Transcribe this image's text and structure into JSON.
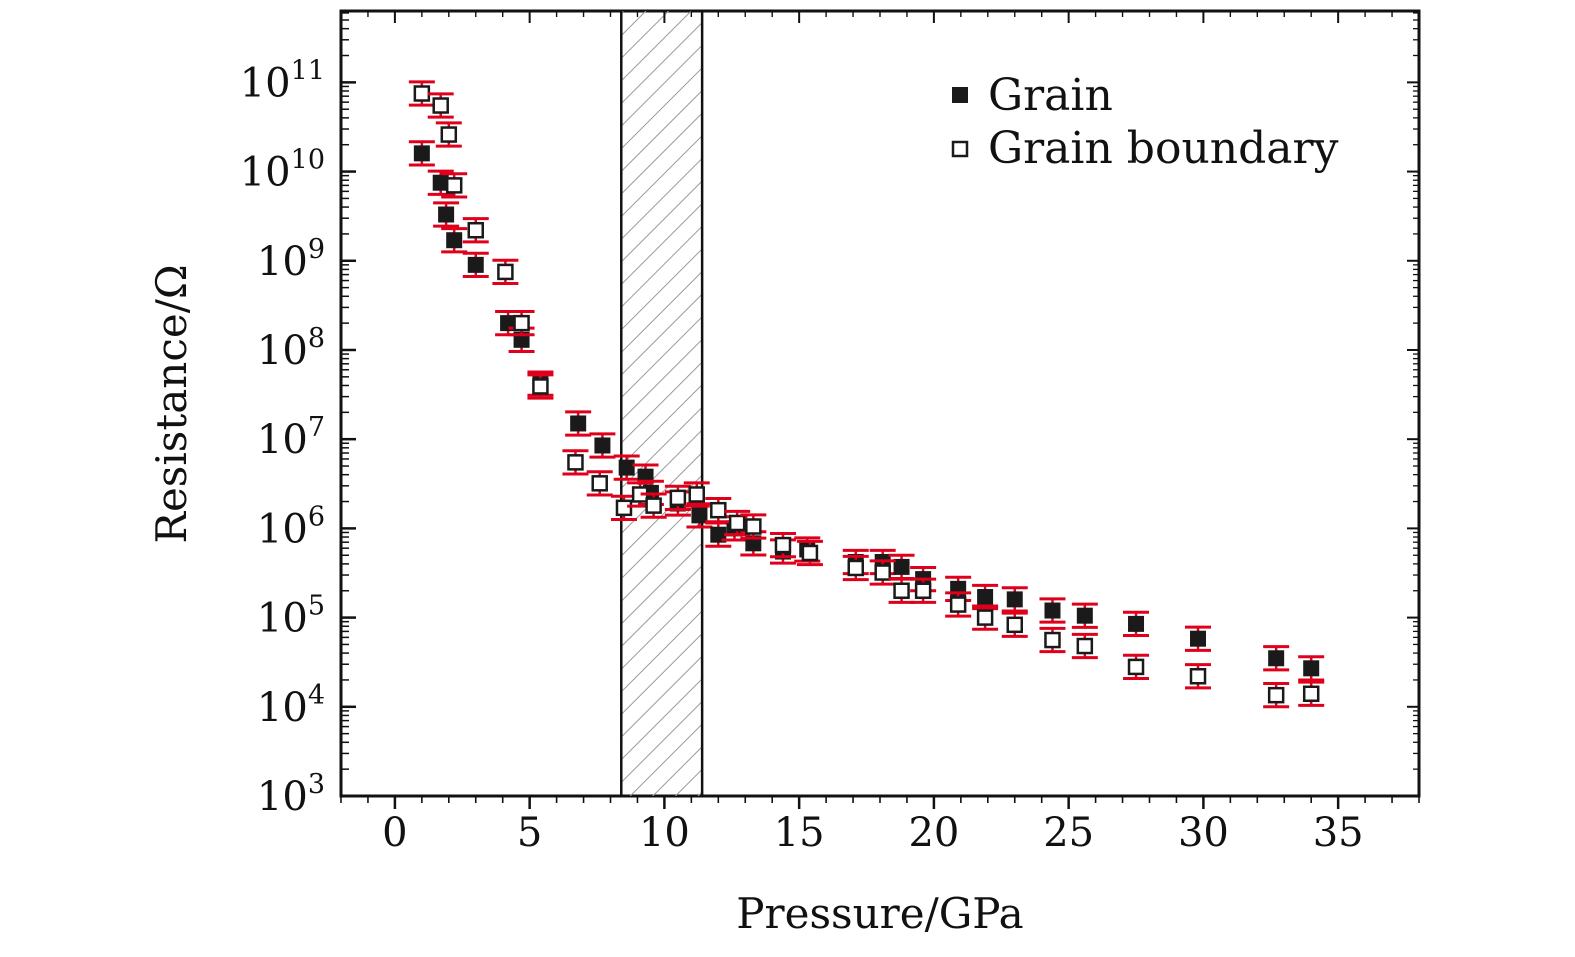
{
  "chart_data": {
    "type": "scatter",
    "xlabel": "Pressure/GPa",
    "ylabel": "Resistance/Ω",
    "xlim": [
      -2,
      38
    ],
    "ylim": [
      3,
      11.8
    ],
    "y_scale": "log10",
    "x_ticks": [
      0,
      5,
      10,
      15,
      20,
      25,
      30,
      35
    ],
    "x_tick_labels": [
      "0",
      "5",
      "10",
      "15",
      "20",
      "25",
      "30",
      "35"
    ],
    "y_ticks": [
      3,
      4,
      5,
      6,
      7,
      8,
      9,
      10,
      11
    ],
    "y_tick_base": "10",
    "y_tick_exponents": [
      "3",
      "4",
      "5",
      "6",
      "7",
      "8",
      "9",
      "10",
      "11"
    ],
    "legend_position": "top-right",
    "shaded_region": {
      "x": [
        8.4,
        11.4
      ]
    },
    "colors": {
      "markers": "#1a1a1a",
      "error_bars": "#e0001b",
      "hatch": "#9a9a9a"
    },
    "series": [
      {
        "name": "Grain",
        "marker": "filled-square",
        "points": [
          {
            "x": 1.0,
            "y": 16000000000.0
          },
          {
            "x": 1.7,
            "y": 7500000000.0
          },
          {
            "x": 1.9,
            "y": 3300000000.0
          },
          {
            "x": 2.2,
            "y": 1700000000.0
          },
          {
            "x": 3.0,
            "y": 900000000.0
          },
          {
            "x": 4.2,
            "y": 200000000.0
          },
          {
            "x": 4.7,
            "y": 130000000.0
          },
          {
            "x": 5.4,
            "y": 42000000.0
          },
          {
            "x": 6.8,
            "y": 15000000.0
          },
          {
            "x": 7.7,
            "y": 8500000.0
          },
          {
            "x": 8.6,
            "y": 4800000.0
          },
          {
            "x": 9.3,
            "y": 3800000.0
          },
          {
            "x": 9.5,
            "y": 2500000.0
          },
          {
            "x": 10.5,
            "y": 1900000.0
          },
          {
            "x": 11.3,
            "y": 1400000.0
          },
          {
            "x": 12.0,
            "y": 850000.0
          },
          {
            "x": 12.6,
            "y": 1000000.0
          },
          {
            "x": 13.3,
            "y": 680000.0
          },
          {
            "x": 14.4,
            "y": 550000.0
          },
          {
            "x": 15.3,
            "y": 580000.0
          },
          {
            "x": 17.1,
            "y": 420000.0
          },
          {
            "x": 18.1,
            "y": 420000.0
          },
          {
            "x": 18.8,
            "y": 370000.0
          },
          {
            "x": 19.6,
            "y": 270000.0
          },
          {
            "x": 20.9,
            "y": 210000.0
          },
          {
            "x": 21.9,
            "y": 170000.0
          },
          {
            "x": 23.0,
            "y": 160000.0
          },
          {
            "x": 24.4,
            "y": 120000.0
          },
          {
            "x": 25.6,
            "y": 105000.0
          },
          {
            "x": 27.5,
            "y": 85000.0
          },
          {
            "x": 29.8,
            "y": 58000.0
          },
          {
            "x": 32.7,
            "y": 35000.0
          },
          {
            "x": 34.0,
            "y": 27000.0
          }
        ]
      },
      {
        "name": "Grain boundary",
        "marker": "open-square",
        "points": [
          {
            "x": 1.0,
            "y": 75000000000.0
          },
          {
            "x": 1.7,
            "y": 55000000000.0
          },
          {
            "x": 2.0,
            "y": 26000000000.0
          },
          {
            "x": 2.2,
            "y": 7000000000.0
          },
          {
            "x": 3.0,
            "y": 2200000000.0
          },
          {
            "x": 4.1,
            "y": 750000000.0
          },
          {
            "x": 4.7,
            "y": 200000000.0
          },
          {
            "x": 5.4,
            "y": 39000000.0
          },
          {
            "x": 6.7,
            "y": 5500000.0
          },
          {
            "x": 7.6,
            "y": 3200000.0
          },
          {
            "x": 8.5,
            "y": 1700000.0
          },
          {
            "x": 9.1,
            "y": 2400000.0
          },
          {
            "x": 9.6,
            "y": 1800000.0
          },
          {
            "x": 10.5,
            "y": 2200000.0
          },
          {
            "x": 11.2,
            "y": 2400000.0
          },
          {
            "x": 12.0,
            "y": 1600000.0
          },
          {
            "x": 12.7,
            "y": 1150000.0
          },
          {
            "x": 13.3,
            "y": 1050000.0
          },
          {
            "x": 14.4,
            "y": 650000.0
          },
          {
            "x": 15.4,
            "y": 530000.0
          },
          {
            "x": 17.1,
            "y": 360000.0
          },
          {
            "x": 18.1,
            "y": 320000.0
          },
          {
            "x": 18.8,
            "y": 200000.0
          },
          {
            "x": 19.6,
            "y": 200000.0
          },
          {
            "x": 20.9,
            "y": 140000.0
          },
          {
            "x": 21.9,
            "y": 100000.0
          },
          {
            "x": 23.0,
            "y": 83000.0
          },
          {
            "x": 24.4,
            "y": 56000.0
          },
          {
            "x": 25.6,
            "y": 48000.0
          },
          {
            "x": 27.5,
            "y": 28000.0
          },
          {
            "x": 29.8,
            "y": 22000.0
          },
          {
            "x": 32.7,
            "y": 13500.0
          },
          {
            "x": 34.0,
            "y": 14000.0
          }
        ]
      }
    ]
  }
}
